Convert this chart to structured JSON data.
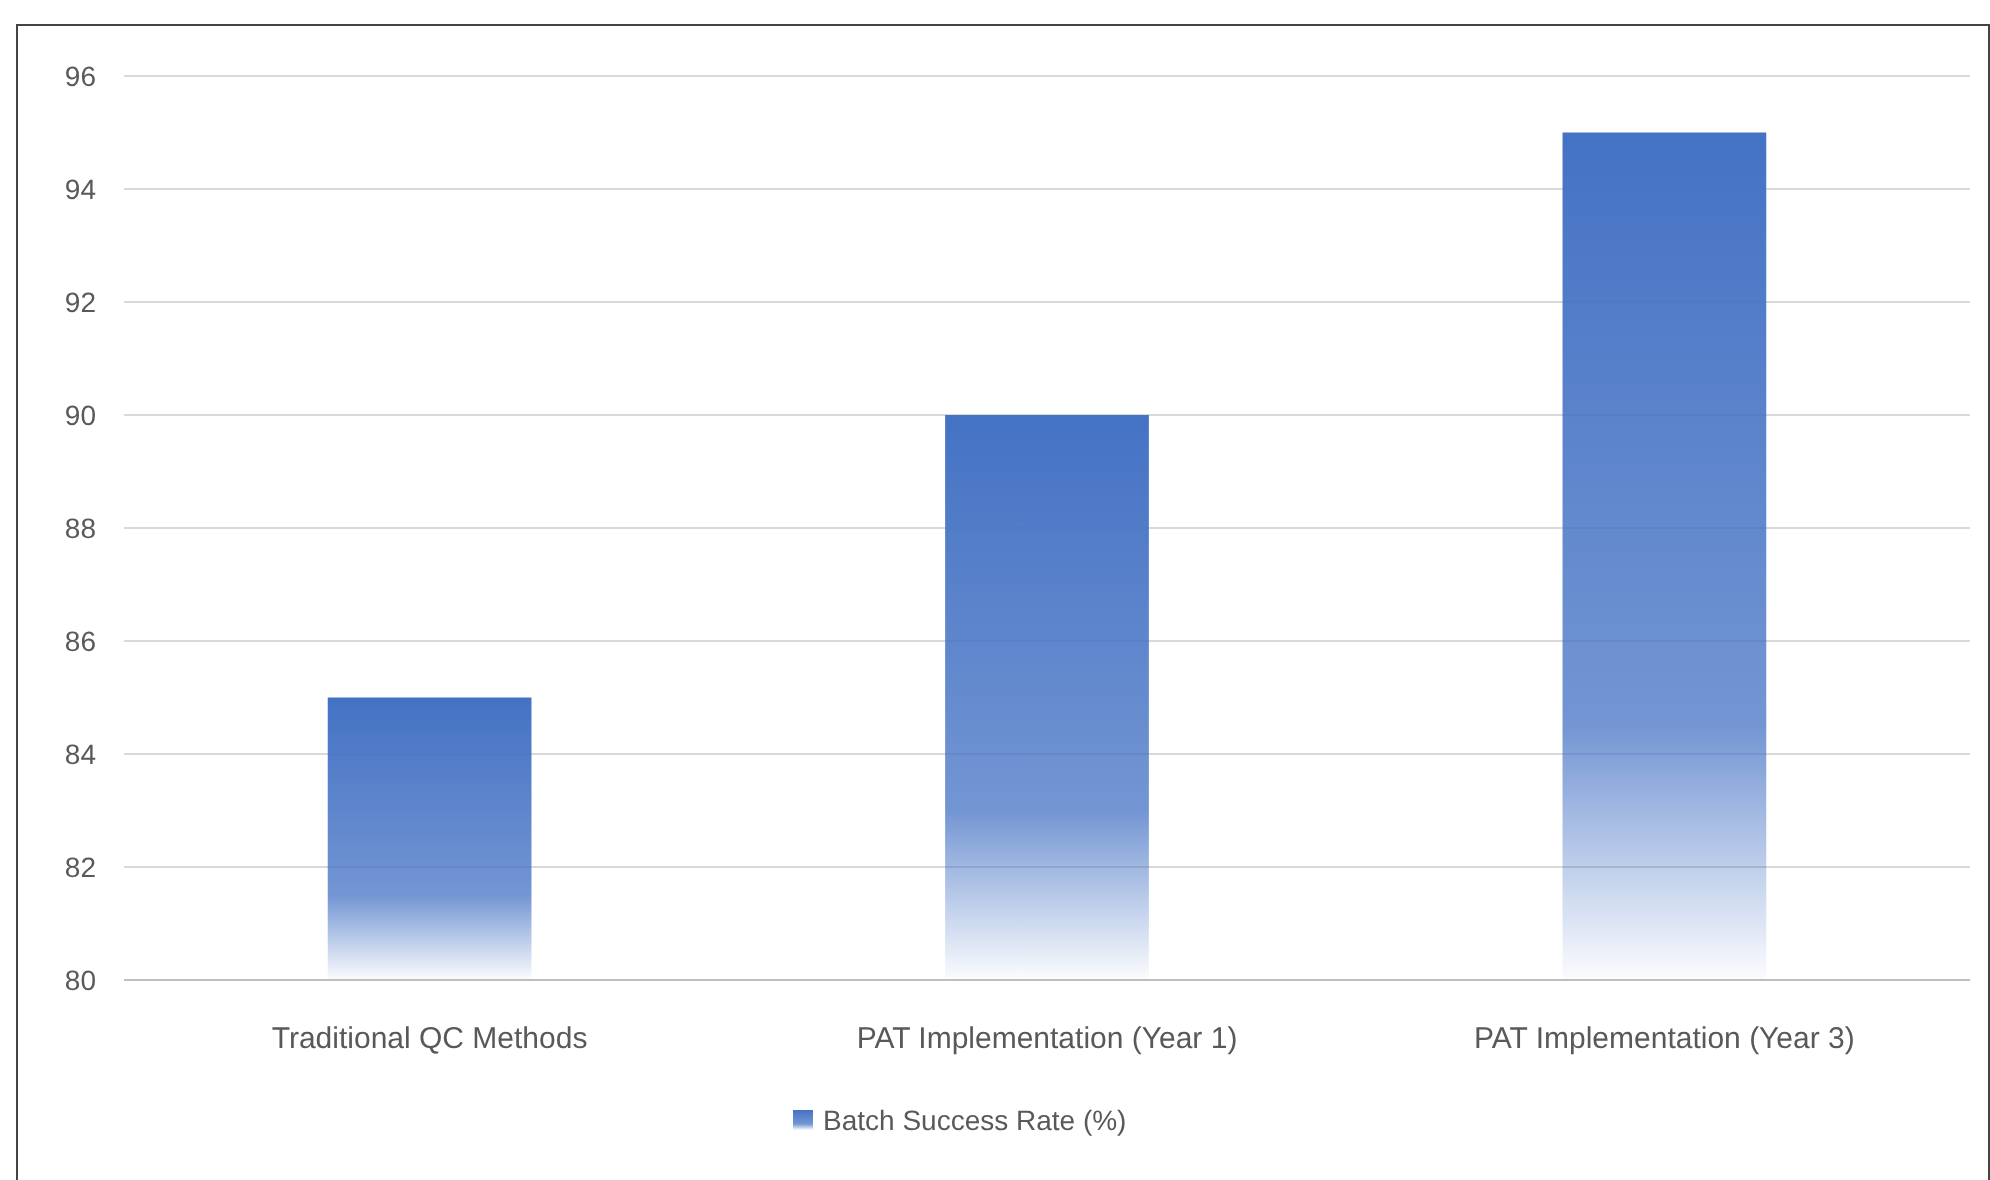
{
  "chart_data": {
    "type": "bar",
    "categories": [
      "Traditional QC Methods",
      "PAT Implementation (Year 1)",
      "PAT Implementation (Year 3)"
    ],
    "series": [
      {
        "name": "Batch Success Rate (%)",
        "color": "#4472c4",
        "values": [
          85,
          90,
          95
        ]
      }
    ],
    "ylim": [
      80,
      96
    ],
    "yticks": [
      80,
      82,
      84,
      86,
      88,
      90,
      92,
      94,
      96
    ],
    "grid": "y",
    "legend": "bottom"
  }
}
